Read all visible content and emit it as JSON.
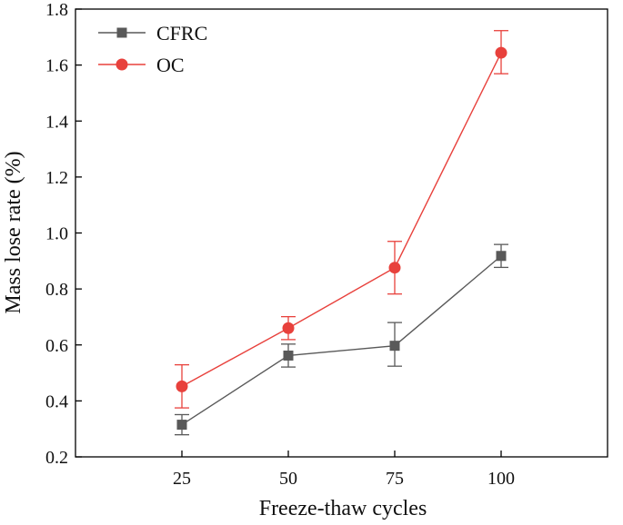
{
  "chart_data": {
    "type": "line",
    "title": "",
    "xlabel": "Freeze-thaw cycles",
    "ylabel": "Mass lose rate (%)",
    "x_categories": [
      "25",
      "50",
      "75",
      "100"
    ],
    "x": [
      25,
      50,
      75,
      100
    ],
    "xlim": [
      0,
      125
    ],
    "ylim": [
      0.2,
      1.8
    ],
    "yticks": [
      "0.2",
      "0.4",
      "0.6",
      "0.8",
      "1.0",
      "1.2",
      "1.4",
      "1.6",
      "1.8"
    ],
    "grid": false,
    "legend_position": "top-left",
    "series": [
      {
        "name": "CFRC",
        "marker": "square",
        "color": "#595959",
        "values": [
          0.315,
          0.562,
          0.597,
          0.918
        ],
        "error_low": [
          0.279,
          0.521,
          0.524,
          0.877
        ],
        "error_high": [
          0.351,
          0.603,
          0.68,
          0.959
        ]
      },
      {
        "name": "OC",
        "marker": "circle",
        "color": "#e8413c",
        "values": [
          0.452,
          0.66,
          0.876,
          1.644
        ],
        "error_low": [
          0.375,
          0.619,
          0.782,
          1.569
        ],
        "error_high": [
          0.529,
          0.701,
          0.97,
          1.723
        ]
      }
    ]
  }
}
